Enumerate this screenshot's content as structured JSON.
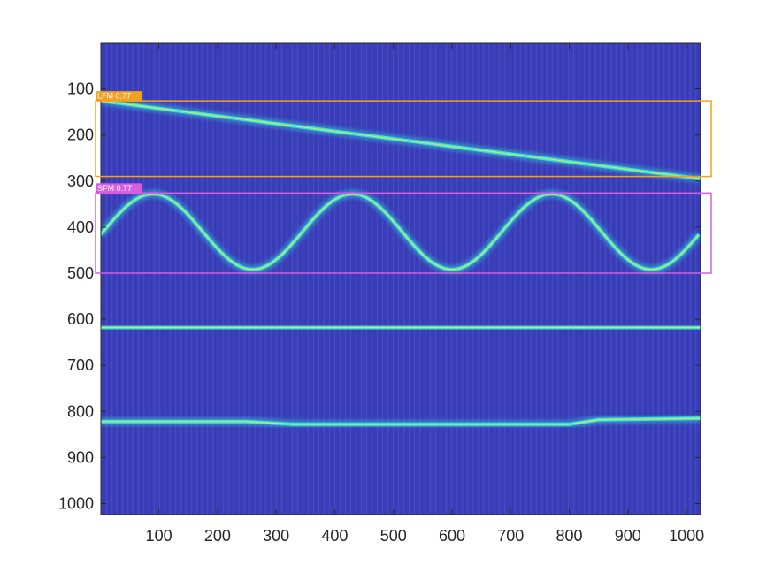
{
  "chart_data": {
    "type": "heatmap",
    "title": "",
    "xlabel": "",
    "ylabel": "",
    "xlim": [
      1,
      1024
    ],
    "ylim": [
      1024,
      1
    ],
    "y_reversed": true,
    "colormap": "parula",
    "background_color": "#3b3fb8",
    "x_ticks": [
      100,
      200,
      300,
      400,
      500,
      600,
      700,
      800,
      900,
      1000
    ],
    "y_ticks": [
      100,
      200,
      300,
      400,
      500,
      600,
      700,
      800,
      900,
      1000
    ],
    "signals": [
      {
        "kind": "lfm",
        "points": [
          [
            1,
            126
          ],
          [
            1024,
            295
          ]
        ]
      },
      {
        "kind": "sfm",
        "center": 410,
        "amplitude": 82,
        "period": 340,
        "phase_x": 90,
        "x_range": [
          1,
          1024
        ]
      },
      {
        "kind": "tone",
        "y": 618,
        "x_range": [
          1,
          1024
        ]
      },
      {
        "kind": "tone",
        "points": [
          [
            1,
            822
          ],
          [
            250,
            822
          ],
          [
            330,
            828
          ],
          [
            800,
            828
          ],
          [
            850,
            818
          ],
          [
            1024,
            815
          ]
        ]
      }
    ],
    "detections": [
      {
        "label": "LFM 0.77",
        "color": "#f5a020",
        "box": {
          "x0": -5,
          "y0": 126,
          "x1": 1024,
          "y1": 290
        }
      },
      {
        "label": "SFM 0.77",
        "color": "#d65ee0",
        "box": {
          "x0": -5,
          "y0": 326,
          "x1": 1024,
          "y1": 500
        }
      }
    ]
  }
}
